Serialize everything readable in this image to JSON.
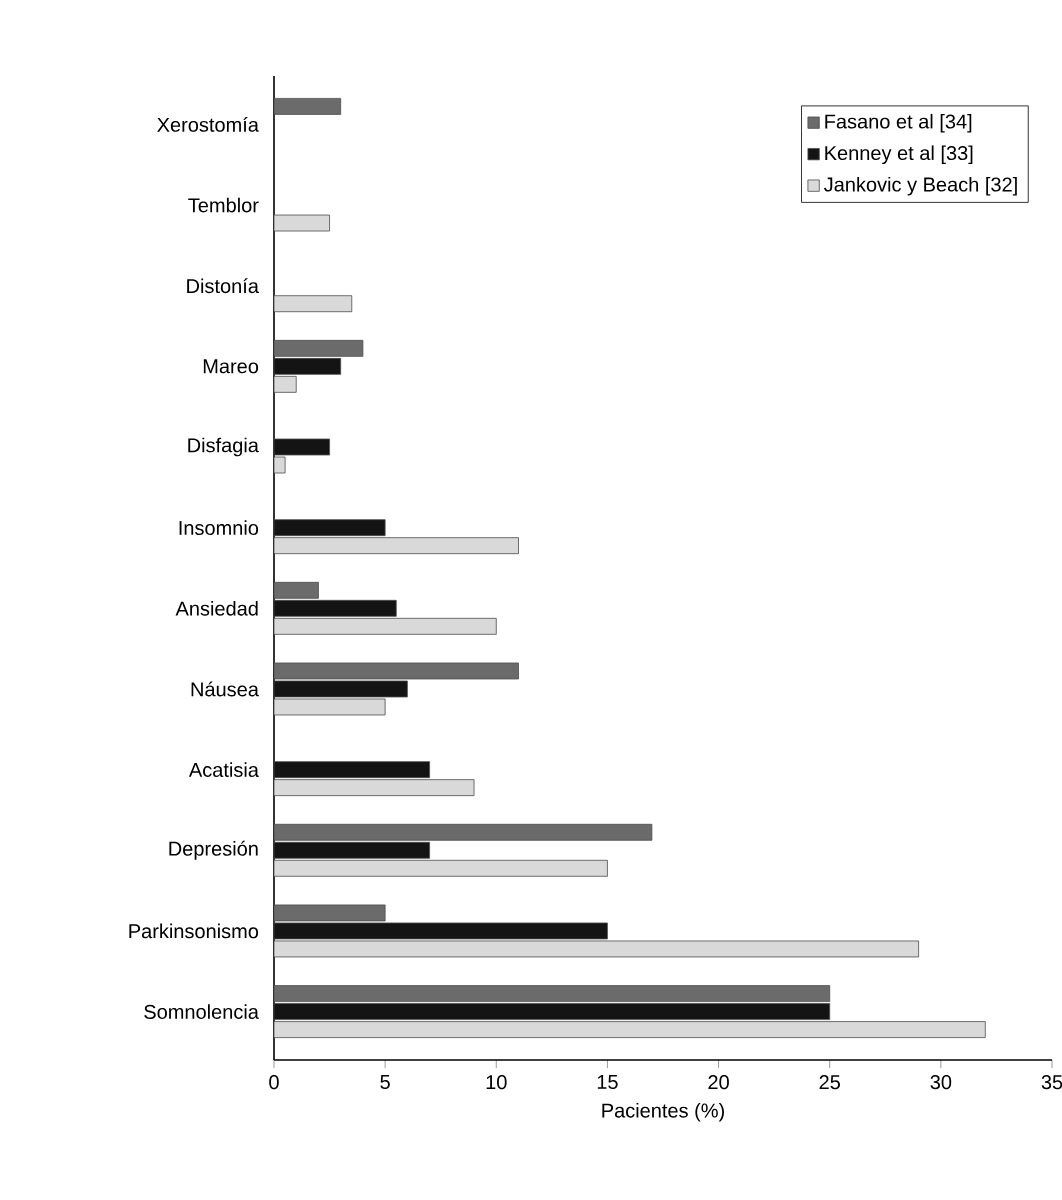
{
  "chart_data": {
    "type": "bar",
    "orientation": "horizontal",
    "xlabel": "Pacientes (%)",
    "categories": [
      "Xerostomía",
      "Temblor",
      "Distonía",
      "Mareo",
      "Disfagia",
      "Insomnio",
      "Ansiedad",
      "Náusea",
      "Acatisia",
      "Depresión",
      "Parkinsonismo",
      "Somnolencia"
    ],
    "series": [
      {
        "name": "Fasano et al [34]",
        "color": "#6b6b6b",
        "values": [
          3,
          null,
          null,
          4,
          null,
          null,
          2,
          11,
          null,
          17,
          5,
          25
        ]
      },
      {
        "name": "Kenney et al [33]",
        "color": "#141414",
        "values": [
          null,
          null,
          null,
          3,
          2.5,
          5,
          5.5,
          6,
          7,
          7,
          15,
          25
        ]
      },
      {
        "name": "Jankovic y Beach [32]",
        "color": "#d9d9d9",
        "values": [
          null,
          2.5,
          3.5,
          1,
          0.5,
          11,
          10,
          5,
          9,
          15,
          29,
          32
        ]
      }
    ],
    "xlim": [
      0,
      35
    ],
    "xticks": [
      0,
      5,
      10,
      15,
      20,
      25,
      30,
      35
    ],
    "legend": "top right",
    "grid": false
  }
}
